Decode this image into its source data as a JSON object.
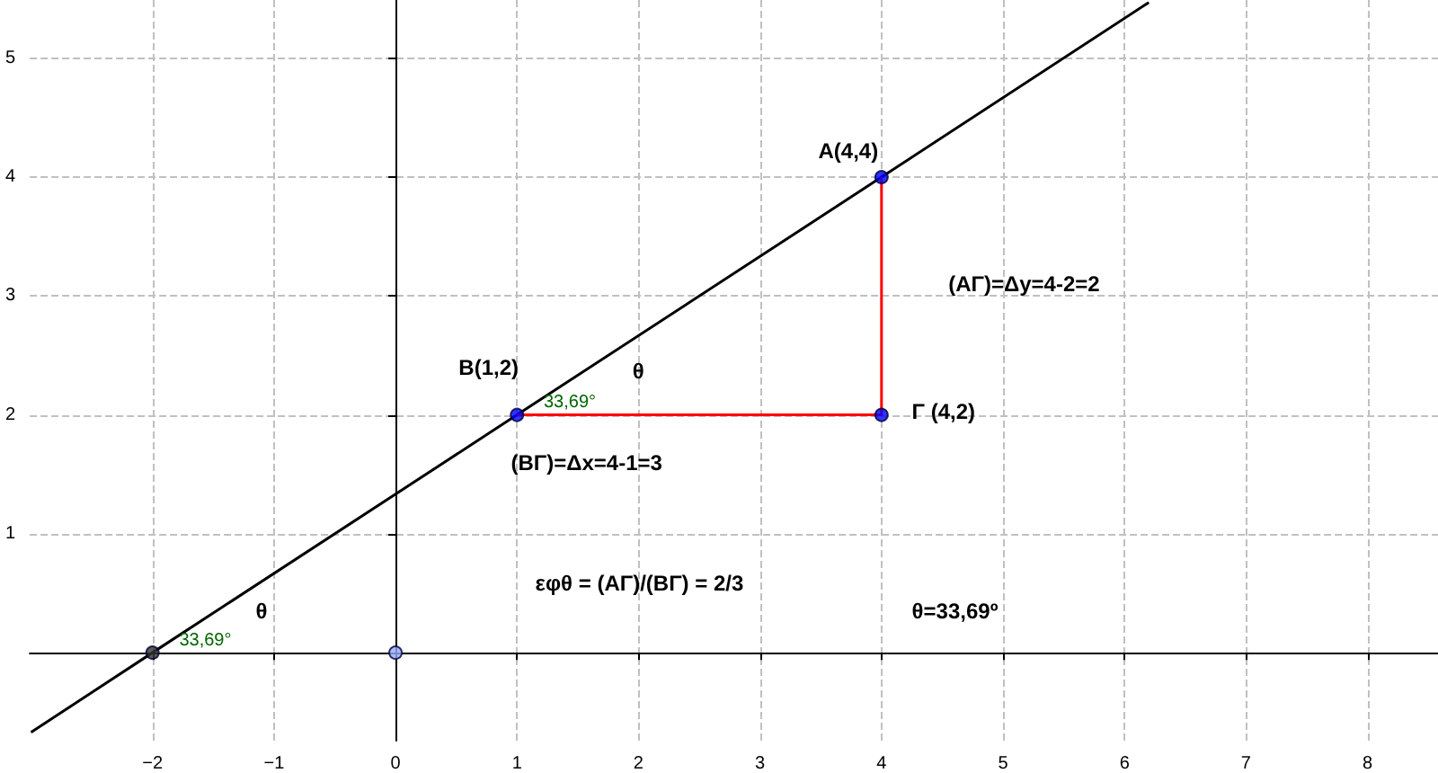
{
  "chart_data": {
    "type": "line",
    "xlim": [
      -3.01,
      8.58
    ],
    "ylim": [
      -0.74,
      5.49
    ],
    "xticks": [
      -2,
      -1,
      0,
      1,
      2,
      3,
      4,
      5,
      6,
      7,
      8
    ],
    "yticks": [
      {
        "value": 0,
        "label": null
      },
      1,
      2,
      3,
      4,
      5
    ],
    "grid": true,
    "series": [
      {
        "color": "#000000",
        "x": [
          -3,
          -2,
          1,
          4,
          6.2
        ],
        "values": [
          -0.67,
          0,
          2,
          4,
          5.47
        ],
        "marker": "none"
      },
      {
        "color": "#ff0000",
        "x": [
          1,
          4,
          4
        ],
        "values": [
          2,
          2,
          4
        ],
        "marker": "none"
      },
      {
        "type": "scatter",
        "color": "#0000ff",
        "x": [
          1,
          4,
          4
        ],
        "values": [
          2,
          4,
          2
        ],
        "marker": "circle"
      },
      {
        "type": "scatter",
        "color": "#333333",
        "x": [
          -2
        ],
        "values": [
          0
        ],
        "marker": "circle"
      },
      {
        "type": "scatter",
        "color": "#99aaff",
        "x": [
          0
        ],
        "values": [
          0
        ],
        "marker": "circle"
      }
    ],
    "annotations": [
      "A(4,4)",
      "B(1,2)",
      "Γ (4,2)",
      "(ΑΓ)=Δy=4-2=2",
      "(ΒΓ)=Δx=4-1=3",
      "θ",
      "33,69°",
      "θ",
      "33,69°",
      "εφθ = (ΑΓ)/(ΒΓ) = 2/3",
      "θ=33,69º"
    ]
  }
}
